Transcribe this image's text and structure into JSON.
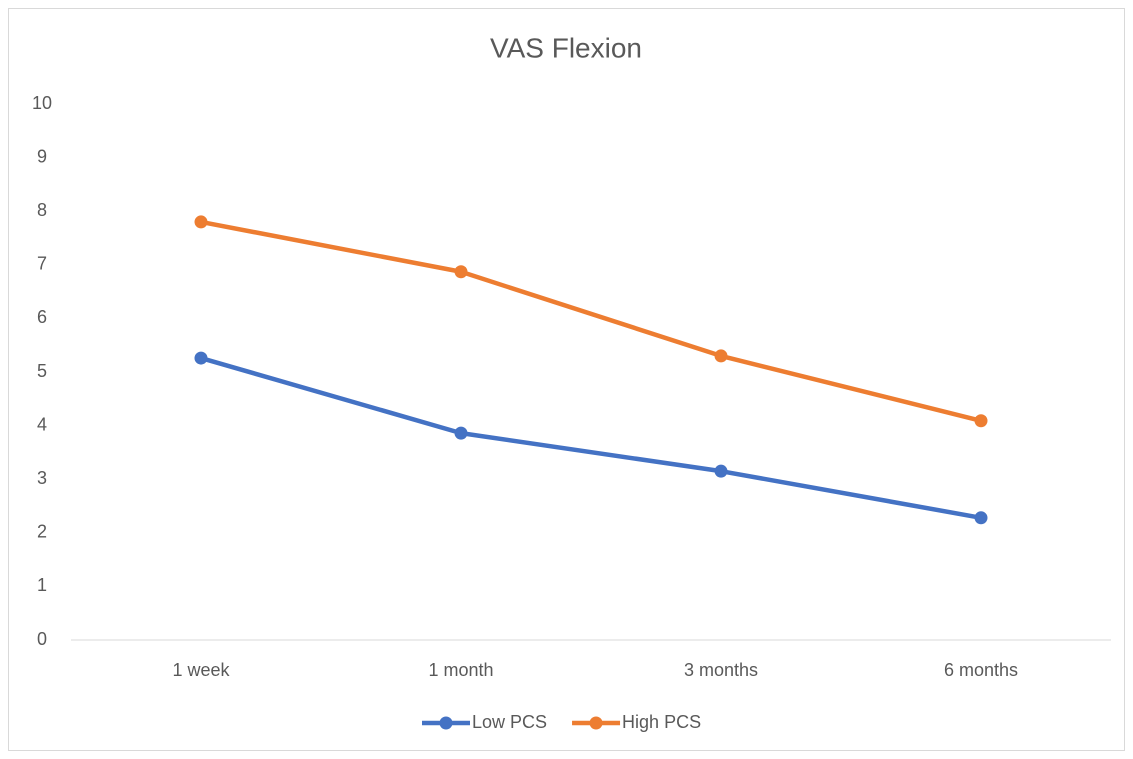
{
  "chart_data": {
    "type": "line",
    "title": "VAS Flexion",
    "categories": [
      "1 week",
      "1 month",
      "3 months",
      "6 months"
    ],
    "series": [
      {
        "name": "Low PCS",
        "color": "#4472c4",
        "values": [
          5.26,
          3.86,
          3.15,
          2.28
        ]
      },
      {
        "name": "High PCS",
        "color": "#ed7d31",
        "values": [
          7.8,
          6.87,
          5.3,
          4.09
        ]
      }
    ],
    "ylim": [
      0,
      10
    ],
    "yticks": [
      0,
      1,
      2,
      3,
      4,
      5,
      6,
      7,
      8,
      9,
      10
    ],
    "grid": false,
    "legend": "bottom"
  }
}
